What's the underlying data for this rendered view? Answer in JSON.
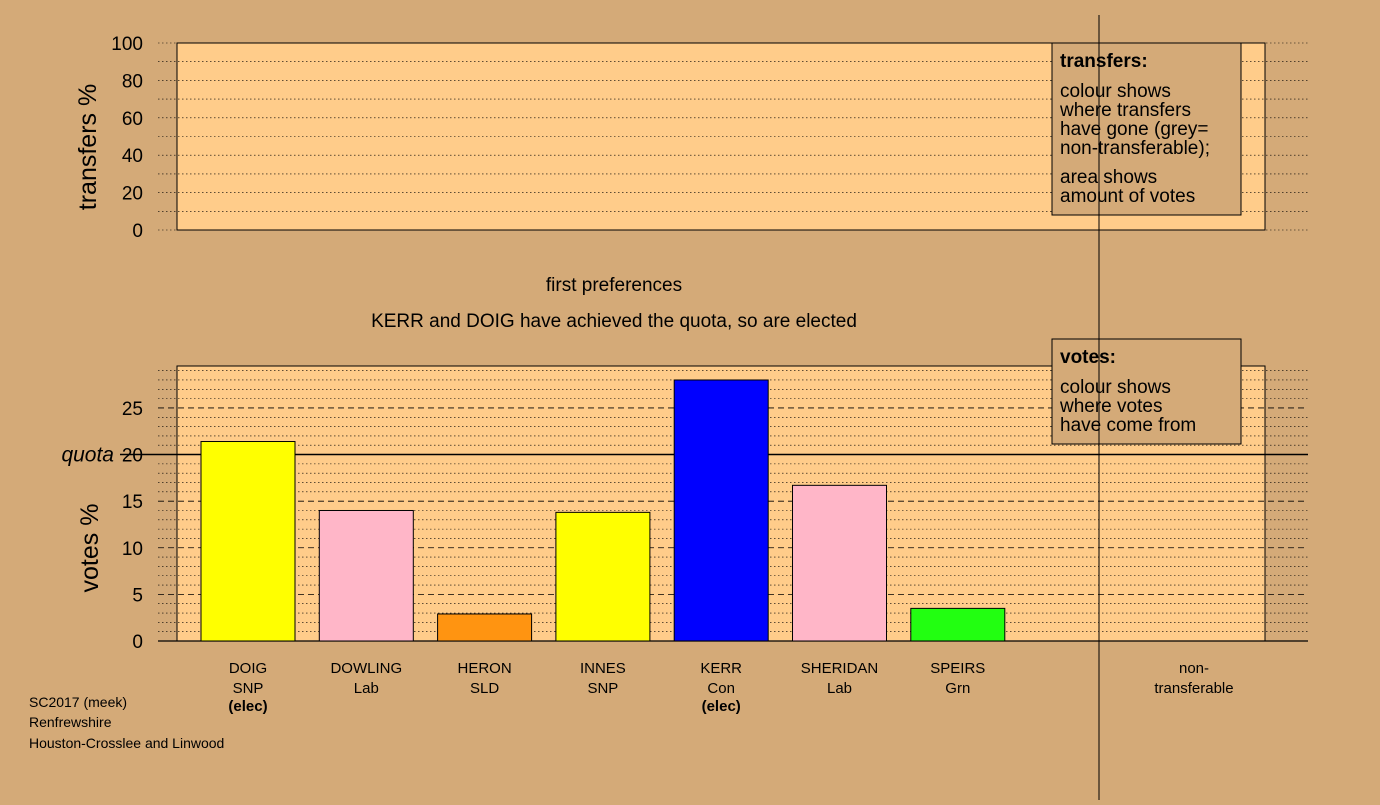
{
  "colors": {
    "background": "#d4aa78",
    "panel": "#ffcc8a",
    "quota_line": "#000000"
  },
  "footer": {
    "line1": "SC2017 (meek)",
    "line2": "Renfrewshire",
    "line3": "Houston-Crosslee and Linwood"
  },
  "chart_data": [
    {
      "type": "bar",
      "panel": "transfers",
      "ylabel": "transfers %",
      "ylim": [
        0,
        100
      ],
      "yticks": [
        0,
        20,
        40,
        60,
        80,
        100
      ],
      "values": [],
      "legend": {
        "title": "transfers:",
        "line1": "colour shows",
        "line2": "where transfers",
        "line3": "have gone (grey=",
        "line4": "non-transferable);",
        "line5": "area shows",
        "line6": "amount of votes"
      }
    },
    {
      "type": "bar",
      "panel": "votes",
      "title": "first preferences",
      "subtitle": "KERR and DOIG have achieved the quota, so are elected",
      "ylabel": "votes %",
      "ylim": [
        0,
        29.5
      ],
      "yticks": [
        0,
        5,
        10,
        15,
        20,
        25
      ],
      "quota": 20,
      "quota_label": "quota",
      "categories": [
        {
          "name": "DOIG",
          "party": "SNP",
          "note": "(elec)",
          "value": 21.4,
          "color": "#ffff00"
        },
        {
          "name": "DOWLING",
          "party": "Lab",
          "note": "",
          "value": 14.0,
          "color": "#ffb6c8"
        },
        {
          "name": "HERON",
          "party": "SLD",
          "note": "",
          "value": 2.9,
          "color": "#ff9411"
        },
        {
          "name": "INNES",
          "party": "SNP",
          "note": "",
          "value": 13.8,
          "color": "#ffff00"
        },
        {
          "name": "KERR",
          "party": "Con",
          "note": "(elec)",
          "value": 28.0,
          "color": "#0000ff"
        },
        {
          "name": "SHERIDAN",
          "party": "Lab",
          "note": "",
          "value": 16.7,
          "color": "#ffb6c8"
        },
        {
          "name": "SPEIRS",
          "party": "Grn",
          "note": "",
          "value": 3.5,
          "color": "#22ff11"
        }
      ],
      "nontransferable": {
        "line1": "non-",
        "line2": "transferable",
        "value": 0
      },
      "legend": {
        "title": "votes:",
        "line1": "colour shows",
        "line2": "where votes",
        "line3": "have come from"
      }
    }
  ]
}
